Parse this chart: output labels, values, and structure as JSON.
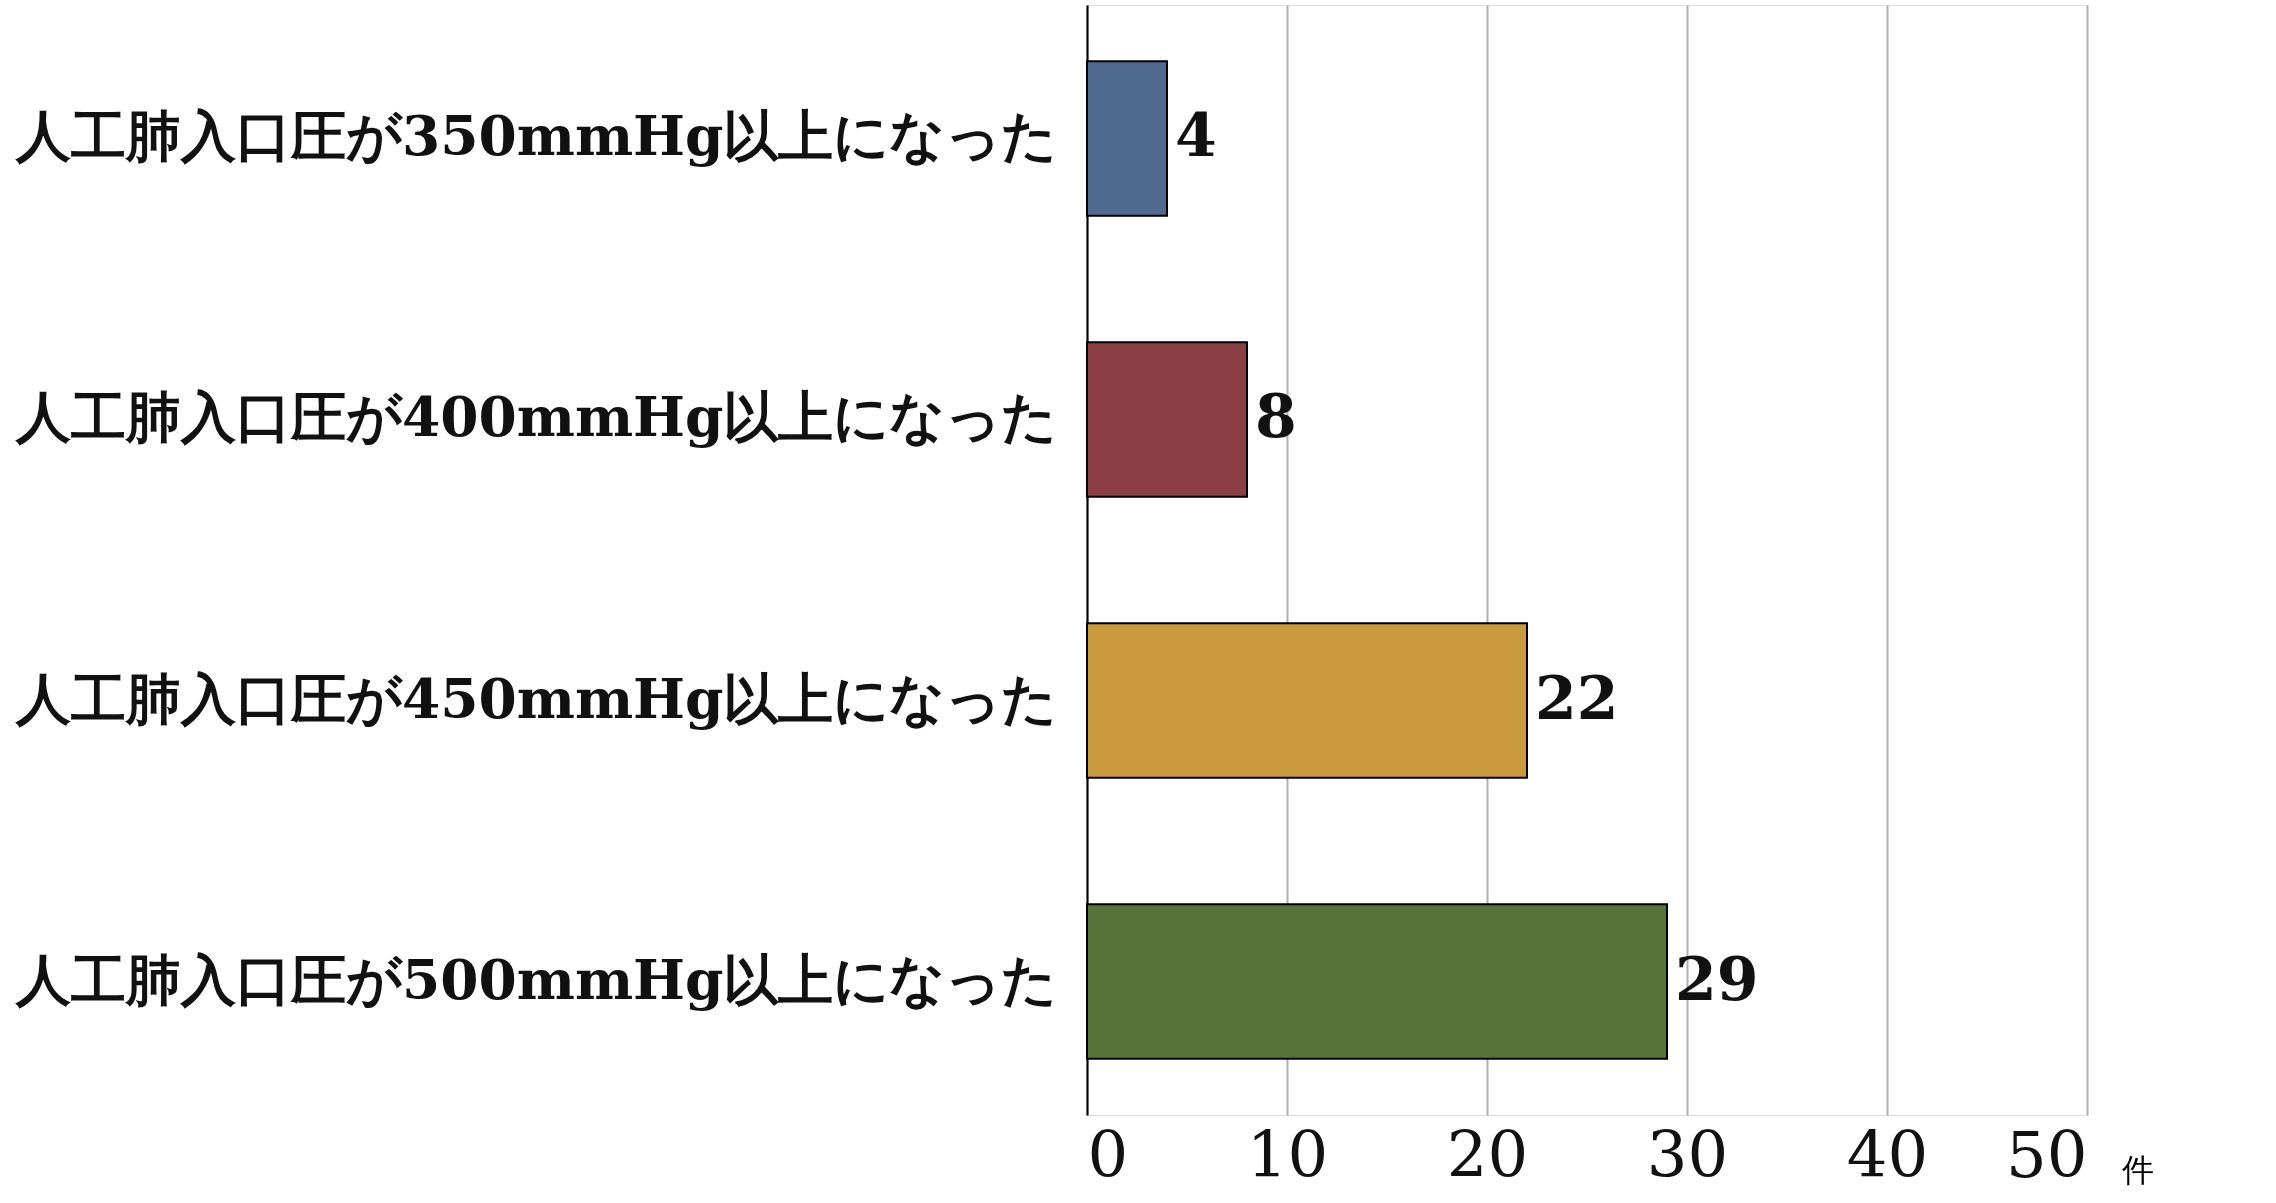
{
  "chart_data": {
    "type": "bar",
    "orientation": "horizontal",
    "categories": [
      "人工肺入口圧が350mmHg以上になった",
      "人工肺入口圧が400mmHg以上になった",
      "人工肺入口圧が450mmHg以上になった",
      "人工肺入口圧が500mmHg以上になった"
    ],
    "values": [
      4,
      8,
      22,
      29
    ],
    "colors": [
      "#50698e",
      "#8b3f44",
      "#c99a3b",
      "#56733a"
    ],
    "xlim": [
      0,
      50
    ],
    "xticks": [
      0,
      10,
      20,
      30,
      40,
      50
    ],
    "xlabel": "件",
    "grid": "x",
    "data_labels": true
  }
}
